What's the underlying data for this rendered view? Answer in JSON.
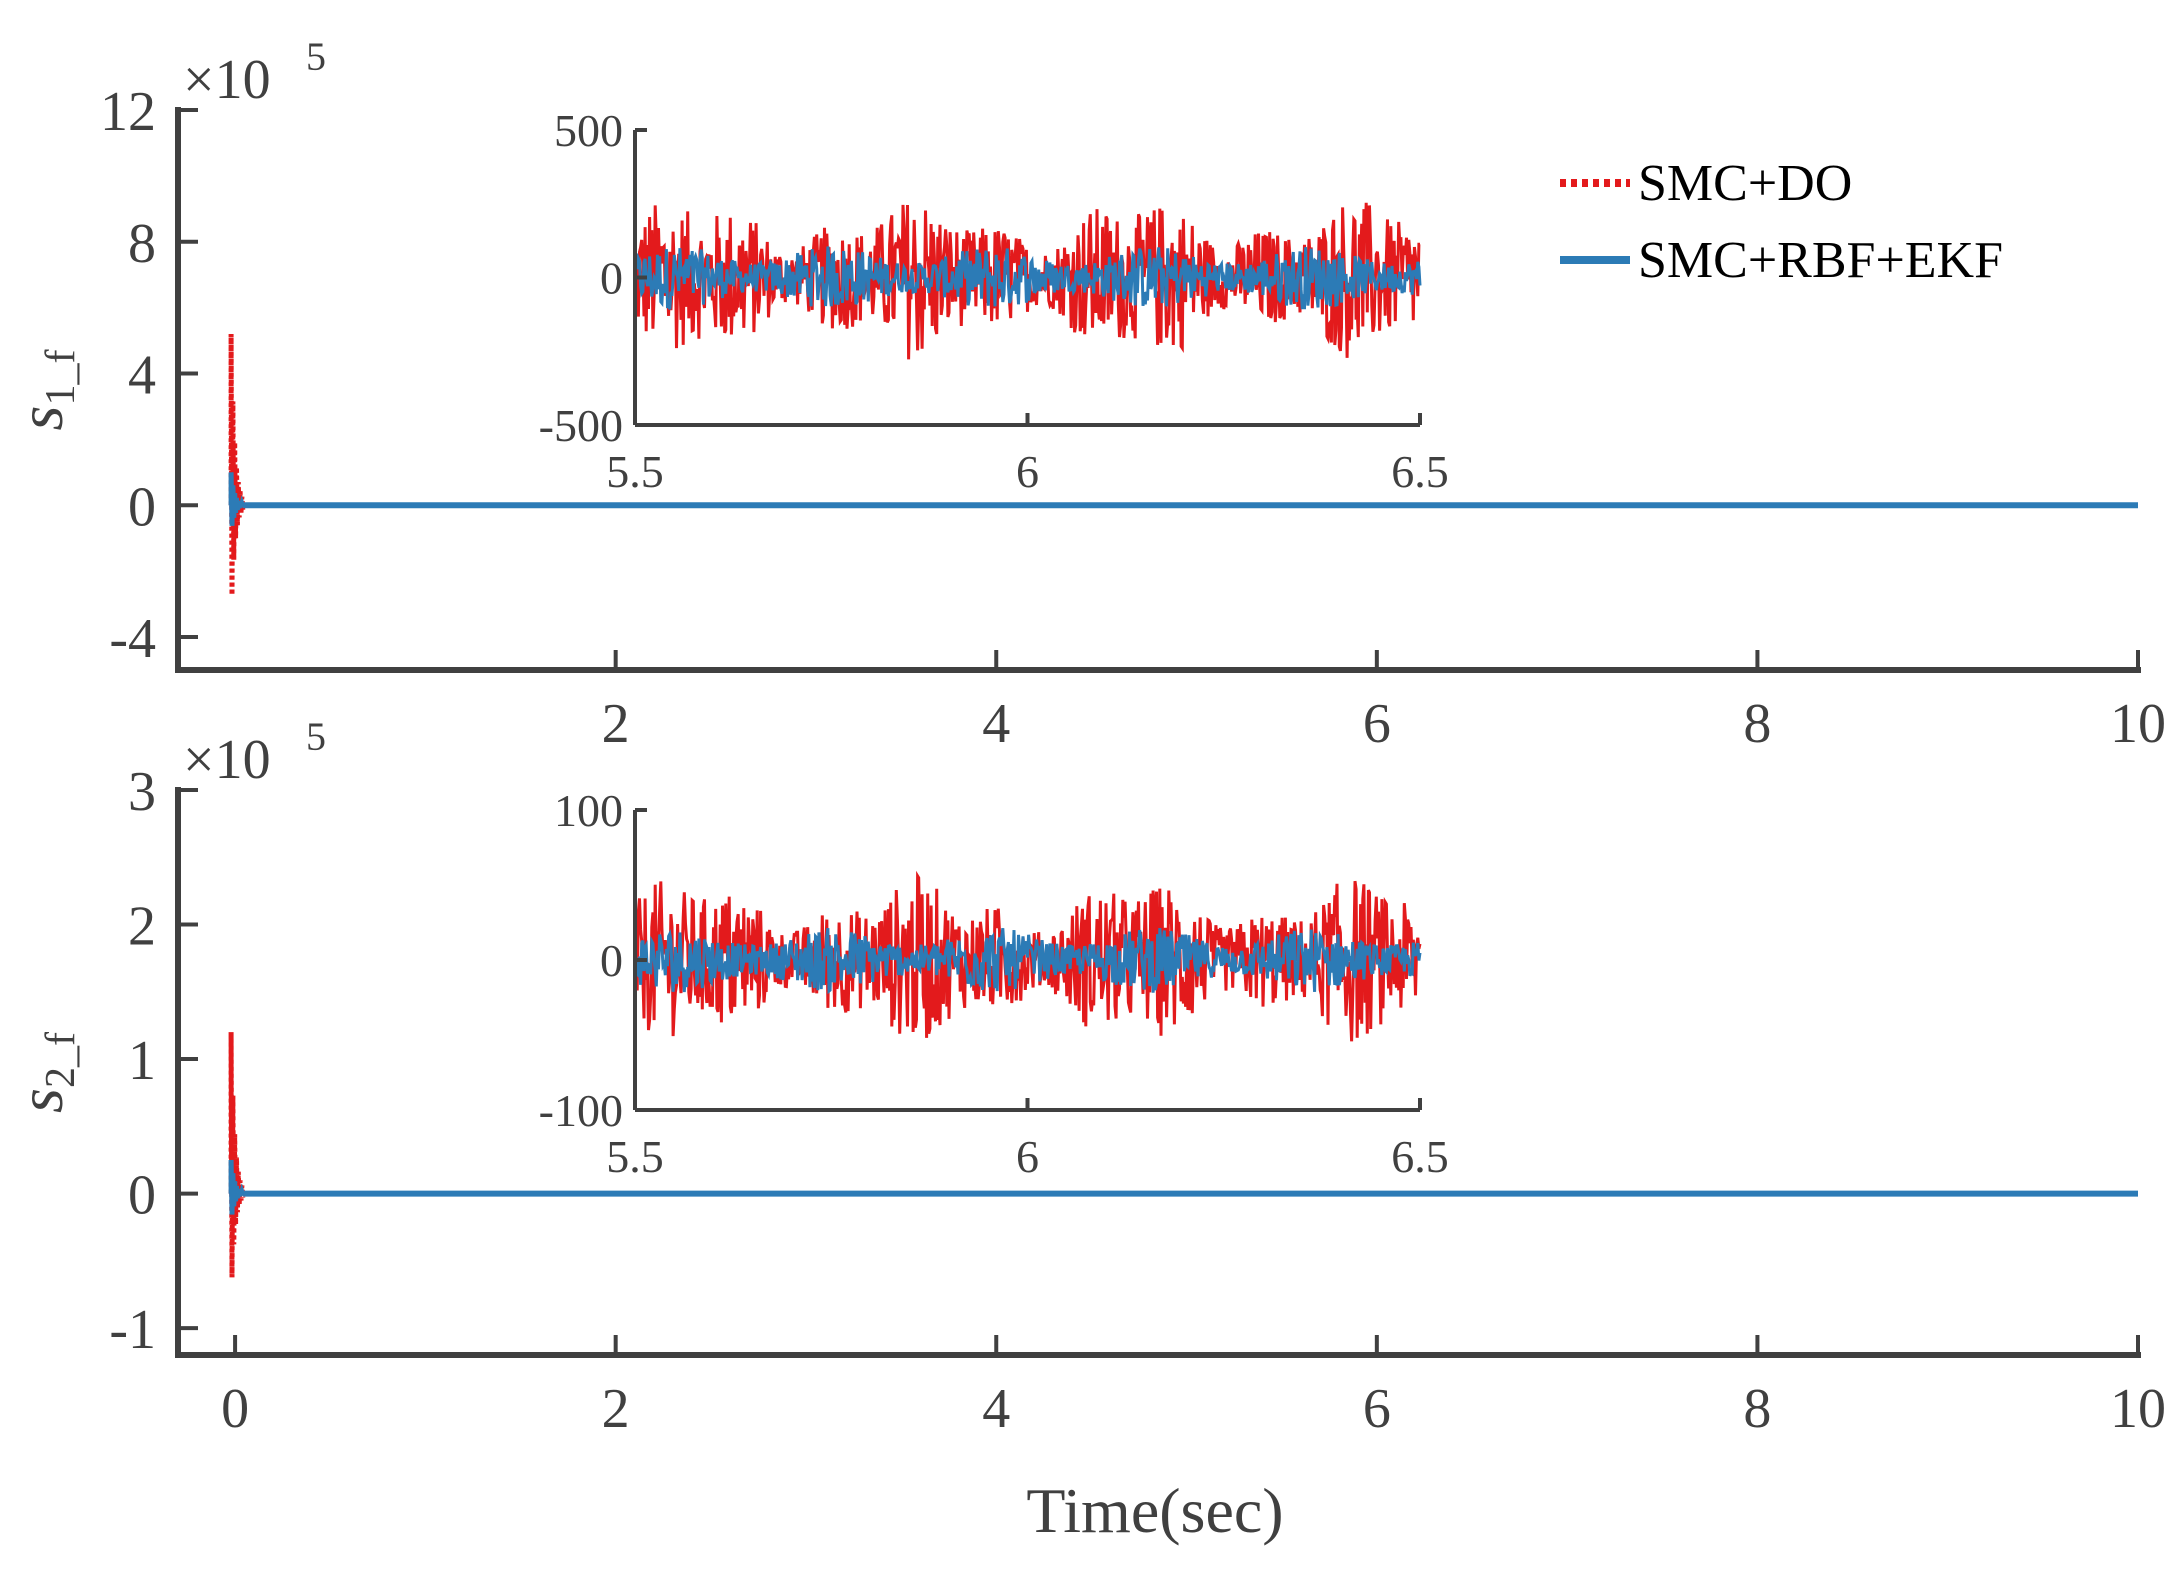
{
  "colors": {
    "smc_do": "#e31a1c",
    "smc_rbf_ekf": "#2c7bb6",
    "axis": "#404040"
  },
  "legend": {
    "location": "top-right",
    "entries": [
      "SMC+DO",
      "SMC+RBF+EKF"
    ]
  },
  "xlabel": "Time(sec)",
  "chart_data": [
    {
      "type": "line",
      "panel": "top",
      "ylabel_base": "s",
      "ylabel_sub": "1_f",
      "exponent_label": "×10",
      "exponent_power": "5",
      "xlim": [
        -0.3,
        10
      ],
      "ylim": [
        -5,
        12
      ],
      "xticks": [
        "2",
        "4",
        "6",
        "8",
        "10"
      ],
      "yticks": [
        "12",
        "8",
        "4",
        "0",
        "-4"
      ],
      "ytick_values": [
        12,
        8,
        4,
        0,
        -4
      ],
      "xtick_values": [
        2,
        4,
        6,
        8,
        10
      ],
      "series": [
        {
          "name": "SMC+DO",
          "style": "dotted",
          "spike_max": 5.2,
          "spike_min": -3.5
        },
        {
          "name": "SMC+RBF+EKF",
          "style": "solid",
          "spike_max": 1.0,
          "spike_min": -0.8
        }
      ],
      "inset": {
        "xlim": [
          5.5,
          6.5
        ],
        "ylim": [
          -500,
          500
        ],
        "xticks": [
          "5.5",
          "6",
          "6.5"
        ],
        "xtick_values": [
          5.5,
          6,
          6.5
        ],
        "yticks": [
          "500",
          "0",
          "-500"
        ],
        "ytick_values": [
          500,
          0,
          -500
        ],
        "do_amplitude": 250,
        "ekf_amplitude": 100
      }
    },
    {
      "type": "line",
      "panel": "bottom",
      "ylabel_base": "s",
      "ylabel_sub": "2_f",
      "exponent_label": "×10",
      "exponent_power": "5",
      "xlim": [
        -0.3,
        10
      ],
      "ylim": [
        -1.2,
        3
      ],
      "xticks": [
        "0",
        "2",
        "4",
        "6",
        "8",
        "10"
      ],
      "yticks": [
        "3",
        "2",
        "1",
        "0",
        "-1"
      ],
      "ytick_values": [
        3,
        2,
        1,
        0,
        -1
      ],
      "xtick_values": [
        0,
        2,
        4,
        6,
        8,
        10
      ],
      "series": [
        {
          "name": "SMC+DO",
          "style": "dotted",
          "spike_max": 1.2,
          "spike_min": -0.8
        },
        {
          "name": "SMC+RBF+EKF",
          "style": "solid",
          "spike_max": 0.25,
          "spike_min": -0.2
        }
      ],
      "inset": {
        "xlim": [
          5.5,
          6.5
        ],
        "ylim": [
          -100,
          100
        ],
        "xticks": [
          "5.5",
          "6",
          "6.5"
        ],
        "xtick_values": [
          5.5,
          6,
          6.5
        ],
        "yticks": [
          "100",
          "0",
          "-100"
        ],
        "ytick_values": [
          100,
          0,
          -100
        ],
        "do_amplitude": 50,
        "ekf_amplitude": 20
      }
    }
  ]
}
